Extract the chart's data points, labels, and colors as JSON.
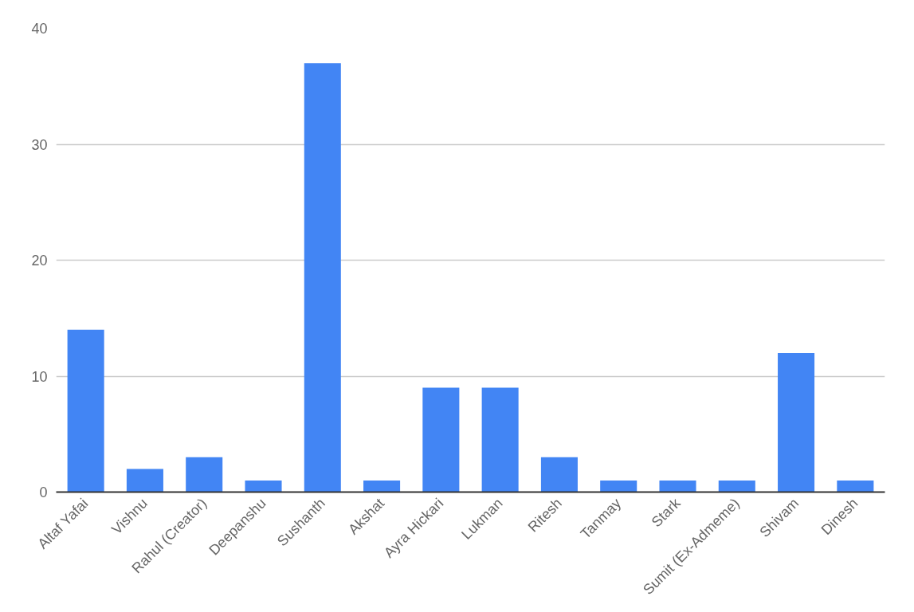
{
  "chart_data": {
    "type": "bar",
    "categories": [
      "Altaf Yafai",
      "Vishnu",
      "Rahul (Creator)",
      "Deepanshu",
      "Sushanth",
      "Akshat",
      "Ayra Hickari",
      "Lukman",
      "Ritesh",
      "Tanmay",
      "Stark",
      "Sumit (Ex-Admeme)",
      "Shivam",
      "Dinesh"
    ],
    "values": [
      14,
      2,
      3,
      1,
      37,
      1,
      9,
      9,
      3,
      1,
      1,
      1,
      12,
      1
    ],
    "color": "#4285f4",
    "ylim": [
      0,
      40
    ],
    "yticks": [
      0,
      10,
      20,
      30,
      40
    ],
    "grid": "y"
  }
}
